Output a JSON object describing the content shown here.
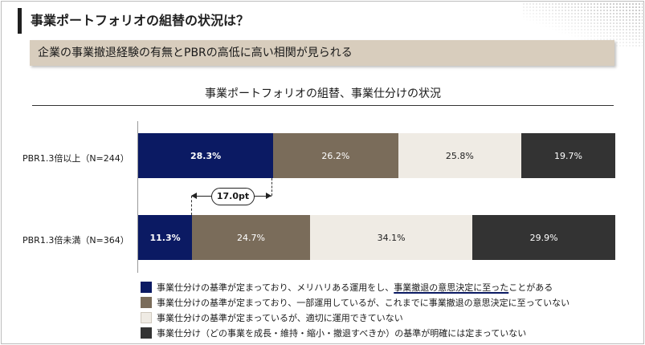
{
  "header": {
    "title": "事業ポートフォリオの組替の状況は？",
    "subtitle": "企業の事業撤退経験の有無とPBRの高低に高い相関が見られる"
  },
  "colors": {
    "accent_navy": "#0b1a63",
    "taupe": "#7a6c5a",
    "light_beige": "#efebe4",
    "dark": "#333333"
  },
  "chart_data": {
    "type": "bar",
    "orientation": "horizontal",
    "stacked": true,
    "percent_stacked": true,
    "title": "事業ポートフォリオの組替、事業仕分けの状況",
    "categories": [
      "PBR1.3倍以上（N=244）",
      "PBR1.3倍未満（N=364）"
    ],
    "series": [
      {
        "name": "事業仕分けの基準が定まっており、メリハリある運用をし、事業撤退の意思決定に至ったことがある",
        "values": [
          28.3,
          11.3
        ],
        "color": "#0b1a63"
      },
      {
        "name": "事業仕分けの基準が定まっており、一部運用しているが、これまでに事業撤退の意思決定に至っていない",
        "values": [
          26.2,
          24.7
        ],
        "color": "#7a6c5a"
      },
      {
        "name": "事業仕分けの基準が定まっているが、適切に運用できていない",
        "values": [
          25.8,
          34.1
        ],
        "color": "#efebe4"
      },
      {
        "name": "事業仕分け（どの事業を成長・維持・縮小・撤退すべきか）の基準が明確には定まっていない",
        "values": [
          19.7,
          29.9
        ],
        "color": "#333333"
      }
    ],
    "value_labels": [
      [
        "28.3%",
        "26.2%",
        "25.8%",
        "19.7%"
      ],
      [
        "11.3%",
        "24.7%",
        "34.1%",
        "29.9%"
      ]
    ],
    "annotation": "17.0pt",
    "legend": {
      "position": "bottom",
      "items": [
        {
          "parts": [
            "事業仕分けの基準が定まっており、メリハリある運用をし、",
            "事業撤退の意思決定に至った",
            "ことがある"
          ]
        },
        {
          "parts": [
            "事業仕分けの基準が定まっており、一部運用しているが、これまでに事業撤退の意思決定に至っていない"
          ]
        },
        {
          "parts": [
            "事業仕分けの基準が定まっているが、適切に運用できていない"
          ]
        },
        {
          "parts": [
            "事業仕分け（どの事業を成長・維持・縮小・撤退すべきか）の基準が明確には定まっていない"
          ]
        }
      ]
    }
  }
}
